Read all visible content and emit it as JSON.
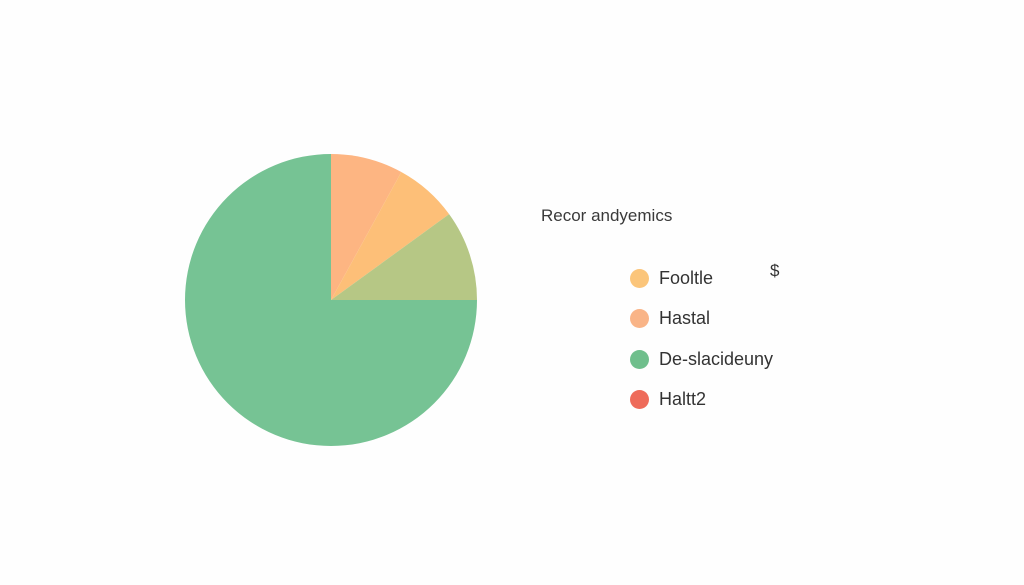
{
  "chart_data": {
    "type": "pie",
    "title": "Recor andyemics",
    "start_angle": "top",
    "direction": "clockwise",
    "slices": [
      {
        "value": 8,
        "color": "#fdb582"
      },
      {
        "value": 7,
        "color": "#fdbf78"
      },
      {
        "value": 10,
        "color": "#b6c785"
      },
      {
        "value": 75,
        "color": "#76c394"
      }
    ],
    "legend": {
      "placement": "right",
      "entries": [
        {
          "label": "Fooltle",
          "color": "#fbc57a"
        },
        {
          "label": "Hastal",
          "color": "#f9b487"
        },
        {
          "label": "De-slacideuny",
          "color": "#6fbf8c"
        },
        {
          "label": "Haltt2",
          "color": "#ee6b5a"
        }
      ]
    },
    "annotation": "$"
  }
}
